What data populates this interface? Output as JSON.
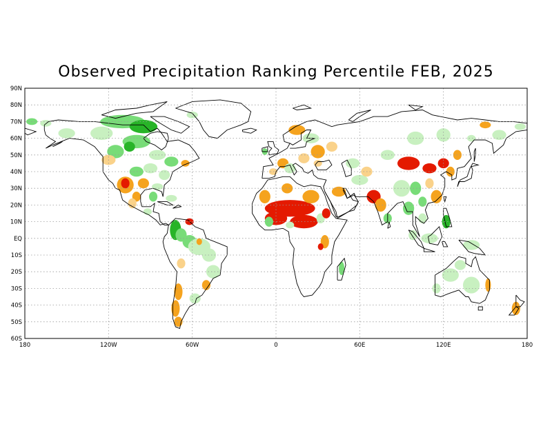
{
  "title": "Observed Precipitation Ranking Percentile FEB, 2025",
  "map": {
    "projection": "equirectangular",
    "lon_range": [
      -180,
      180
    ],
    "lat_range": [
      -60,
      90
    ],
    "grid": "dotted",
    "lat_labels": [
      "90N",
      "80N",
      "70N",
      "60N",
      "50N",
      "40N",
      "30N",
      "20N",
      "10N",
      "EQ",
      "10S",
      "20S",
      "30S",
      "40S",
      "50S",
      "60S"
    ],
    "lon_labels": [
      "180",
      "120W",
      "60W",
      "0",
      "60E",
      "120E",
      "180"
    ],
    "category_colors": {
      "very_dry": "#e41a00",
      "dry": "#f5a31e",
      "light_dry": "#fad28a",
      "light_wet": "#c8f0c0",
      "wet": "#78dc78",
      "very_wet": "#28b428"
    }
  }
}
